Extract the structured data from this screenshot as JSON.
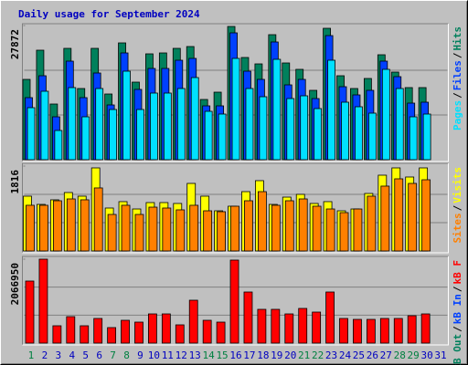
{
  "chart_data": {
    "type": "bar",
    "title": "Daily usage for September 2024",
    "legend_separator": "/",
    "grid": true,
    "grid_divisions": 3,
    "categories": [
      "1",
      "2",
      "3",
      "4",
      "5",
      "6",
      "7",
      "8",
      "9",
      "10",
      "11",
      "12",
      "13",
      "14",
      "15",
      "16",
      "17",
      "18",
      "19",
      "20",
      "21",
      "22",
      "23",
      "24",
      "25",
      "26",
      "27",
      "28",
      "29",
      "30",
      "31"
    ],
    "category_colors": [
      "#008040",
      "#0000c0",
      "#0000c0",
      "#0000c0",
      "#0000c0",
      "#0000c0",
      "#008040",
      "#008040",
      "#0000c0",
      "#0000c0",
      "#0000c0",
      "#0000c0",
      "#0000c0",
      "#008040",
      "#008040",
      "#0000c0",
      "#0000c0",
      "#0000c0",
      "#0000c0",
      "#0000c0",
      "#008040",
      "#008040",
      "#0000c0",
      "#0000c0",
      "#0000c0",
      "#0000c0",
      "#0000c0",
      "#008040",
      "#008040",
      "#0000c0",
      "#0000c0"
    ],
    "panels": [
      {
        "ylim": [
          0,
          27872
        ],
        "yticks": [
          27872
        ],
        "series": [
          {
            "name": "Hits",
            "color": "#00805c",
            "values": [
              16685,
              22752,
              11566,
              23132,
              14789,
              23132,
              13651,
              24269,
              16116,
              21994,
              22183,
              23132,
              23511,
              12514,
              14030,
              27682,
              21235,
              19908,
              25975,
              20098,
              18771,
              14410,
              27303,
              17443,
              14789,
              16875,
              21804,
              18202,
              14979,
              14979,
              null
            ]
          },
          {
            "name": "Files",
            "color": "#0040ff",
            "values": [
              12893,
              17443,
              8911,
              20477,
              12893,
              18012,
              11376,
              22183,
              14600,
              18960,
              18960,
              20666,
              21046,
              11186,
              11186,
              26355,
              18391,
              16685,
              24459,
              15547,
              16685,
              12703,
              25786,
              15168,
              13462,
              14410,
              20477,
              17254,
              11755,
              11945,
              null
            ]
          },
          {
            "name": "Pages",
            "color": "#00e0ff",
            "values": [
              10807,
              14220,
              6067,
              14979,
              8911,
              14789,
              10428,
              18391,
              10428,
              13841,
              13841,
              14789,
              17064,
              10049,
              9480,
              21046,
              14789,
              13082,
              20856,
              12703,
              13272,
              10618,
              20666,
              11945,
              10997,
              9670,
              18771,
              14789,
              8911,
              9480,
              null
            ]
          }
        ]
      },
      {
        "ylim": [
          0,
          1816
        ],
        "yticks": [
          1816
        ],
        "series": [
          {
            "name": "Visits",
            "color": "#ffff00",
            "values": [
              1172,
              996,
              1094,
              1250,
              1172,
              1777,
              918,
              1055,
              898,
              1035,
              1035,
              1016,
              1445,
              1172,
              859,
              957,
              1269,
              1504,
              996,
              1152,
              1211,
              1016,
              1055,
              859,
              898,
              1230,
              1621,
              1777,
              1582,
              1777,
              null
            ]
          },
          {
            "name": "Sites",
            "color": "#ff8000",
            "values": [
              977,
              977,
              1074,
              1113,
              1094,
              1348,
              781,
              977,
              781,
              937,
              918,
              879,
              977,
              859,
              840,
              957,
              1074,
              1269,
              977,
              1074,
              1113,
              957,
              898,
              820,
              898,
              1172,
              1387,
              1543,
              1445,
              1523,
              null
            ]
          }
        ]
      },
      {
        "ylim": [
          0,
          2066950
        ],
        "yticks": [
          2066950
        ],
        "series": [
          {
            "name": "kB F",
            "color": "#ff0000",
            "values": [
              1527756,
              2066950,
              426873,
              651543,
              426873,
              606609,
              381939,
              561675,
              516741,
              718944,
              718944,
              449340,
              1055949,
              561675,
              516741,
              2044483,
              1258152,
              831279,
              831279,
              718944,
              853746,
              763878,
              1258152,
              606609,
              584142,
              584142,
              606609,
              606609,
              674010,
              718944,
              null
            ]
          },
          {
            "name": "kB In",
            "color": "#0040ff",
            "values": [
              null,
              null,
              null,
              null,
              null,
              null,
              null,
              null,
              null,
              null,
              null,
              null,
              null,
              null,
              null,
              null,
              null,
              null,
              null,
              null,
              null,
              null,
              null,
              null,
              null,
              null,
              null,
              null,
              null,
              null,
              null
            ]
          },
          {
            "name": "kB Out",
            "color": "#00805c",
            "values": [
              null,
              null,
              null,
              null,
              null,
              null,
              null,
              null,
              null,
              null,
              null,
              null,
              null,
              null,
              null,
              null,
              null,
              null,
              null,
              null,
              null,
              null,
              null,
              null,
              null,
              null,
              null,
              null,
              null,
              null,
              null
            ]
          }
        ]
      }
    ]
  }
}
